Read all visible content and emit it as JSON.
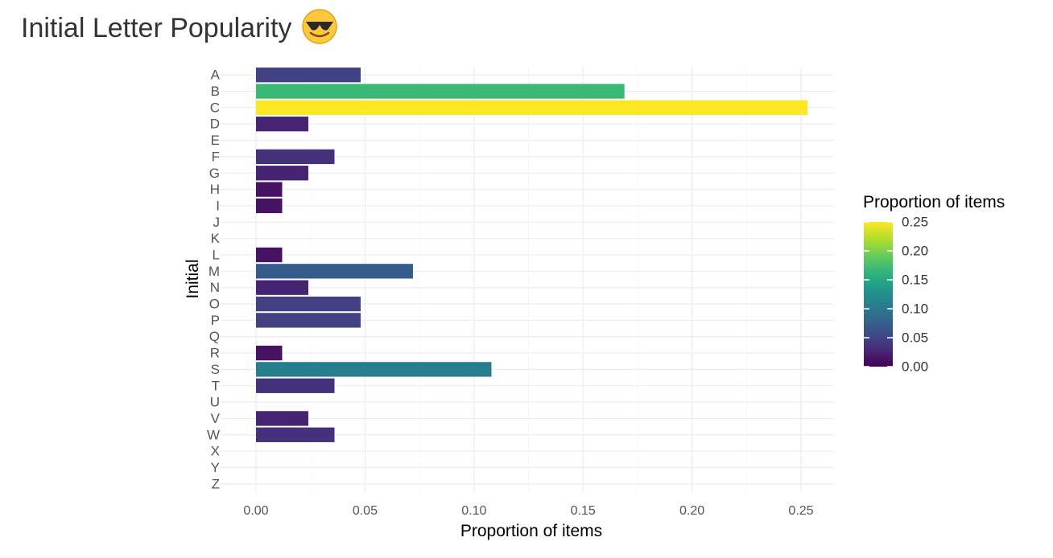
{
  "chart_data": {
    "type": "bar",
    "orientation": "horizontal",
    "title": "Initial Letter Popularity",
    "title_icon": "sunglasses-face-icon",
    "xlabel": "Proportion of items",
    "ylabel": "Initial",
    "xlim": [
      0,
      0.25
    ],
    "x_ticks": [
      "0.00",
      "0.05",
      "0.10",
      "0.15",
      "0.20",
      "0.25"
    ],
    "categories": [
      "A",
      "B",
      "C",
      "D",
      "E",
      "F",
      "G",
      "H",
      "I",
      "J",
      "K",
      "L",
      "M",
      "N",
      "O",
      "P",
      "Q",
      "R",
      "S",
      "T",
      "U",
      "V",
      "W",
      "X",
      "Y",
      "Z"
    ],
    "values": [
      0.048,
      0.169,
      0.253,
      0.024,
      0,
      0.036,
      0.024,
      0.012,
      0.012,
      0,
      0,
      0.012,
      0.072,
      0.024,
      0.048,
      0.048,
      0,
      0.012,
      0.108,
      0.036,
      0,
      0.024,
      0.036,
      0,
      0,
      0
    ],
    "grid": true,
    "legend": {
      "title": "Proportion of items",
      "placement": "right",
      "type": "colorbar",
      "palette": "viridis",
      "ticks": [
        "0.00",
        "0.05",
        "0.10",
        "0.15",
        "0.20",
        "0.25"
      ]
    },
    "colors": {
      "viridis_stops": [
        "#440154",
        "#482878",
        "#3e4a89",
        "#31688e",
        "#26828e",
        "#1f9e89",
        "#35b779",
        "#6ece58",
        "#b5de2b",
        "#fde725"
      ],
      "grid": "#ebebeb"
    }
  }
}
